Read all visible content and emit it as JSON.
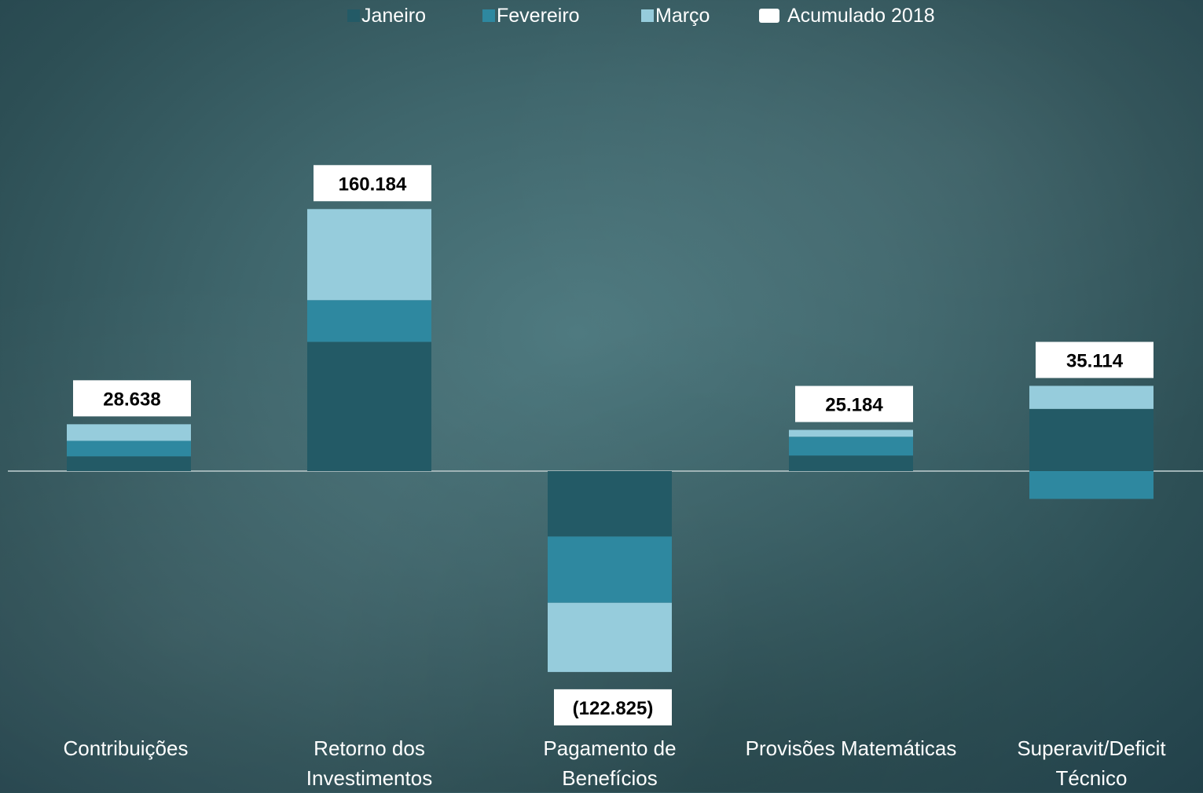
{
  "chart_data": {
    "type": "bar",
    "stacked": true,
    "categories": [
      "Contribuições",
      "Retorno dos Investimentos",
      "Pagamento de Benefícios",
      "Provisões Matemáticas",
      "Superavit/Deficit Técnico"
    ],
    "category_lines": [
      [
        "Contribuições"
      ],
      [
        "Retorno dos",
        "Investimentos"
      ],
      [
        "Pagamento de",
        "Benefícios"
      ],
      [
        "Provisões Matemáticas"
      ],
      [
        "Superavit/Deficit",
        "Técnico"
      ]
    ],
    "series": [
      {
        "name": "Janeiro",
        "color": "#235a66",
        "values": [
          9000,
          79000,
          -40000,
          9500,
          38000
        ]
      },
      {
        "name": "Fevereiro",
        "color": "#2e88a0",
        "values": [
          9500,
          25500,
          -40500,
          11500,
          -17000
        ]
      },
      {
        "name": "Março",
        "color": "#96ccdc",
        "values": [
          10138,
          55684,
          -42325,
          4184,
          14114
        ]
      }
    ],
    "accumulated": {
      "name": "Acumulado 2018",
      "color": "#ffffff",
      "labels": [
        "28.638",
        "160.184",
        "(122.825)",
        "25.184",
        "35.114"
      ]
    },
    "ylim": [
      -192000,
      284000
    ],
    "legend_position": "top",
    "grid": false
  }
}
